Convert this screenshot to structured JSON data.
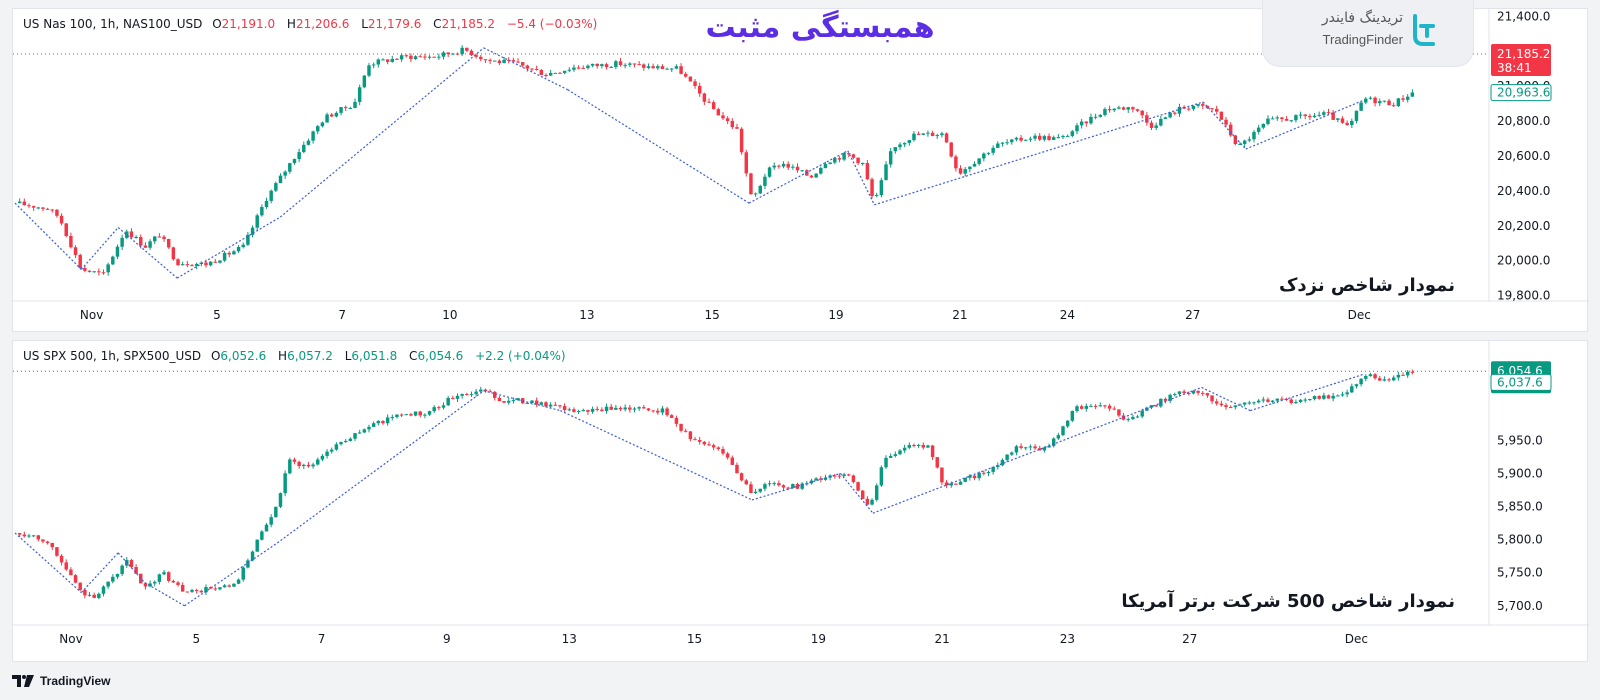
{
  "header": {
    "headline": "همبستگی مثبت",
    "brand_fa": "تریدینگ فایندر",
    "brand_en": "TradingFinder",
    "footer_brand": "TradingView"
  },
  "colors": {
    "up": "#089981",
    "down": "#f23645",
    "zigzag": "#3a5bd9",
    "headline": "#5b2ee6"
  },
  "chart_data": [
    {
      "type": "candlestick",
      "legend": {
        "symbol": "US Nas 100, 1h, NAS100_USD",
        "o_label": "O",
        "o": "21,191.0",
        "h_label": "H",
        "h": "21,206.6",
        "l_label": "L",
        "l": "21,179.6",
        "c_label": "C",
        "c": "21,185.2",
        "change": "−5.4 (−0.03%)",
        "change_dir": "down"
      },
      "panel_label": "نمودار شاخص نزدک",
      "y_ticks": [
        "21,400.0",
        "21,000.0",
        "20,800.0",
        "20,600.0",
        "20,400.0",
        "20,200.0",
        "20,000.0",
        "19,800.0"
      ],
      "y_tick_values": [
        21400,
        21000,
        20800,
        20600,
        20400,
        20200,
        20000,
        19800
      ],
      "ylim": [
        19780,
        21420
      ],
      "x_ticks": [
        "Nov",
        "5",
        "7",
        "10",
        "13",
        "15",
        "19",
        "21",
        "24",
        "27",
        "Dec"
      ],
      "x_tick_frac": [
        0.052,
        0.137,
        0.222,
        0.295,
        0.388,
        0.473,
        0.557,
        0.641,
        0.714,
        0.799,
        0.912
      ],
      "price_badges": [
        {
          "value": 21185.2,
          "text": "21,185.2",
          "sub": "38:41",
          "kind": "last-down"
        },
        {
          "value": 20963.6,
          "text": "20,963.6",
          "kind": "outline-up"
        }
      ],
      "last_line": 21185.2,
      "anchors": [
        [
          0.0,
          20330
        ],
        [
          0.022,
          20300
        ],
        [
          0.03,
          20250
        ],
        [
          0.045,
          19950
        ],
        [
          0.06,
          19920
        ],
        [
          0.075,
          20180
        ],
        [
          0.088,
          20080
        ],
        [
          0.098,
          20150
        ],
        [
          0.11,
          19990
        ],
        [
          0.13,
          19980
        ],
        [
          0.155,
          20080
        ],
        [
          0.17,
          20350
        ],
        [
          0.19,
          20600
        ],
        [
          0.21,
          20820
        ],
        [
          0.23,
          20900
        ],
        [
          0.24,
          21130
        ],
        [
          0.265,
          21170
        ],
        [
          0.285,
          21170
        ],
        [
          0.305,
          21210
        ],
        [
          0.32,
          21150
        ],
        [
          0.34,
          21130
        ],
        [
          0.36,
          21070
        ],
        [
          0.38,
          21110
        ],
        [
          0.41,
          21130
        ],
        [
          0.43,
          21110
        ],
        [
          0.45,
          21100
        ],
        [
          0.47,
          20900
        ],
        [
          0.48,
          20820
        ],
        [
          0.49,
          20750
        ],
        [
          0.5,
          20340
        ],
        [
          0.51,
          20510
        ],
        [
          0.52,
          20560
        ],
        [
          0.54,
          20480
        ],
        [
          0.55,
          20570
        ],
        [
          0.565,
          20610
        ],
        [
          0.575,
          20560
        ],
        [
          0.583,
          20320
        ],
        [
          0.595,
          20650
        ],
        [
          0.61,
          20720
        ],
        [
          0.63,
          20730
        ],
        [
          0.64,
          20500
        ],
        [
          0.665,
          20660
        ],
        [
          0.69,
          20710
        ],
        [
          0.71,
          20700
        ],
        [
          0.725,
          20790
        ],
        [
          0.74,
          20870
        ],
        [
          0.76,
          20880
        ],
        [
          0.77,
          20770
        ],
        [
          0.79,
          20870
        ],
        [
          0.8,
          20890
        ],
        [
          0.815,
          20860
        ],
        [
          0.83,
          20650
        ],
        [
          0.85,
          20800
        ],
        [
          0.87,
          20820
        ],
        [
          0.89,
          20840
        ],
        [
          0.905,
          20760
        ],
        [
          0.915,
          20930
        ],
        [
          0.935,
          20900
        ],
        [
          0.945,
          20950
        ],
        [
          0.948,
          20963.6
        ]
      ],
      "zigzag": [
        [
          0.0,
          20330
        ],
        [
          0.045,
          19950
        ],
        [
          0.07,
          20190
        ],
        [
          0.11,
          19900
        ],
        [
          0.18,
          20250
        ],
        [
          0.318,
          21220
        ],
        [
          0.375,
          20980
        ],
        [
          0.498,
          20330
        ],
        [
          0.565,
          20630
        ],
        [
          0.583,
          20320
        ],
        [
          0.806,
          20910
        ],
        [
          0.835,
          20640
        ],
        [
          0.915,
          20920
        ]
      ]
    },
    {
      "type": "candlestick",
      "legend": {
        "symbol": "US SPX 500, 1h, SPX500_USD",
        "o_label": "O",
        "o": "6,052.6",
        "h_label": "H",
        "h": "6,057.2",
        "l_label": "L",
        "l": "6,051.8",
        "c_label": "C",
        "c": "6,054.6",
        "change": "+2.2 (+0.04%)",
        "change_dir": "up"
      },
      "panel_label": "نمودار شاخص 500 شرکت برتر آمریکا",
      "y_ticks": [
        "5,950.0",
        "5,900.0",
        "5,850.0",
        "5,800.0",
        "5,750.0",
        "5,700.0"
      ],
      "y_tick_values": [
        5950,
        5900,
        5850,
        5800,
        5750,
        5700
      ],
      "ylim": [
        5680,
        6070
      ],
      "x_ticks": [
        "Nov",
        "5",
        "7",
        "9",
        "13",
        "15",
        "19",
        "21",
        "23",
        "27",
        "Dec"
      ],
      "x_tick_frac": [
        0.038,
        0.123,
        0.208,
        0.293,
        0.376,
        0.461,
        0.545,
        0.629,
        0.714,
        0.797,
        0.91
      ],
      "price_badges": [
        {
          "value": 6054.6,
          "text": "6,054.6",
          "sub": "38:41",
          "kind": "last-up"
        },
        {
          "value": 6037.6,
          "text": "6,037.6",
          "kind": "outline-up"
        }
      ],
      "last_line": 6054.6,
      "anchors": [
        [
          0.0,
          5810
        ],
        [
          0.015,
          5805
        ],
        [
          0.025,
          5790
        ],
        [
          0.033,
          5760
        ],
        [
          0.045,
          5720
        ],
        [
          0.055,
          5715
        ],
        [
          0.068,
          5745
        ],
        [
          0.075,
          5770
        ],
        [
          0.088,
          5725
        ],
        [
          0.1,
          5750
        ],
        [
          0.115,
          5720
        ],
        [
          0.13,
          5725
        ],
        [
          0.15,
          5730
        ],
        [
          0.16,
          5780
        ],
        [
          0.178,
          5850
        ],
        [
          0.185,
          5920
        ],
        [
          0.2,
          5910
        ],
        [
          0.215,
          5940
        ],
        [
          0.24,
          5970
        ],
        [
          0.26,
          5990
        ],
        [
          0.28,
          5990
        ],
        [
          0.3,
          6020
        ],
        [
          0.32,
          6025
        ],
        [
          0.33,
          6010
        ],
        [
          0.35,
          6010
        ],
        [
          0.375,
          5995
        ],
        [
          0.395,
          5995
        ],
        [
          0.41,
          6000
        ],
        [
          0.44,
          5995
        ],
        [
          0.46,
          5950
        ],
        [
          0.48,
          5935
        ],
        [
          0.5,
          5870
        ],
        [
          0.51,
          5885
        ],
        [
          0.53,
          5880
        ],
        [
          0.55,
          5895
        ],
        [
          0.565,
          5900
        ],
        [
          0.58,
          5845
        ],
        [
          0.59,
          5925
        ],
        [
          0.605,
          5940
        ],
        [
          0.62,
          5940
        ],
        [
          0.63,
          5880
        ],
        [
          0.65,
          5895
        ],
        [
          0.665,
          5910
        ],
        [
          0.68,
          5940
        ],
        [
          0.695,
          5935
        ],
        [
          0.705,
          5950
        ],
        [
          0.72,
          6000
        ],
        [
          0.74,
          6005
        ],
        [
          0.755,
          5980
        ],
        [
          0.77,
          6000
        ],
        [
          0.79,
          6025
        ],
        [
          0.805,
          6020
        ],
        [
          0.82,
          6000
        ],
        [
          0.84,
          6010
        ],
        [
          0.865,
          6010
        ],
        [
          0.885,
          6015
        ],
        [
          0.9,
          6015
        ],
        [
          0.915,
          6050
        ],
        [
          0.93,
          6040
        ],
        [
          0.948,
          6054.6
        ]
      ],
      "zigzag": [
        [
          0.0,
          5810
        ],
        [
          0.045,
          5720
        ],
        [
          0.07,
          5780
        ],
        [
          0.088,
          5735
        ],
        [
          0.115,
          5700
        ],
        [
          0.178,
          5795
        ],
        [
          0.318,
          6025
        ],
        [
          0.37,
          5995
        ],
        [
          0.5,
          5860
        ],
        [
          0.56,
          5900
        ],
        [
          0.582,
          5840
        ],
        [
          0.805,
          6030
        ],
        [
          0.838,
          5995
        ],
        [
          0.915,
          6050
        ]
      ]
    }
  ]
}
